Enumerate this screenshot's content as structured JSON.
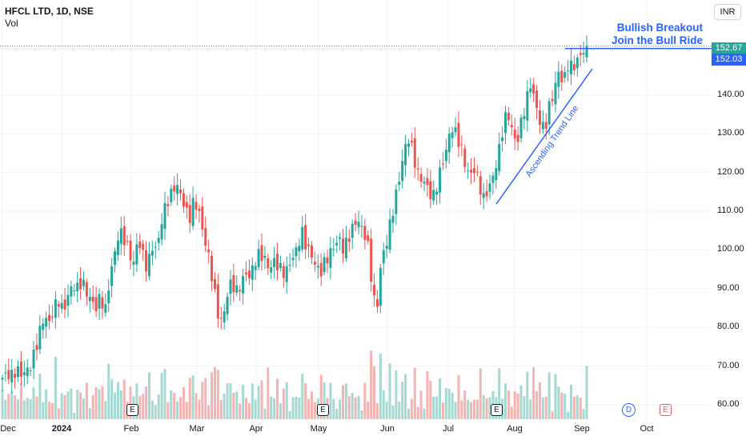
{
  "header": {
    "symbol": "HFCL LTD, 1D, NSE",
    "volume_label": "Vol"
  },
  "currency_button": "INR",
  "annotation": {
    "line1": "Bullish Breakout",
    "line2": "Join the Bull Ride",
    "trendline_label": "Ascending Trend Line"
  },
  "price_badges": {
    "last": "152.67",
    "level": "152.03"
  },
  "events": {
    "earnings": "E",
    "dividend": "D",
    "earnings_upcoming": "E"
  },
  "colors": {
    "up": "#26a69a",
    "down": "#ef5350",
    "vol_up": "#a7d8d2",
    "vol_down": "#f5b3b1",
    "accent": "#2962ff",
    "grid": "#f0f3fa"
  },
  "chart_data": {
    "type": "candlestick",
    "title": "HFCL LTD, 1D, NSE",
    "y_axis_ticks": [
      60,
      70,
      80,
      90,
      100,
      110,
      120,
      130,
      140
    ],
    "y_tick_labels": [
      "60.00",
      "70.00",
      "80.00",
      "90.00",
      "100.00",
      "110.00",
      "120.00",
      "130.00",
      "140.00"
    ],
    "x_tick_labels": [
      "Dec",
      "2024",
      "Feb",
      "Mar",
      "Apr",
      "May",
      "Jun",
      "Jul",
      "Aug",
      "Sep",
      "Oct"
    ],
    "last_price": 152.67,
    "breakout_level": 152.03,
    "close_path": [
      67,
      68,
      67.5,
      69,
      68,
      68.5,
      70,
      74,
      79,
      83,
      81,
      85,
      87,
      84,
      88,
      91,
      90,
      92,
      89,
      87,
      85,
      88,
      84,
      93,
      99,
      105,
      103,
      100,
      96,
      103,
      99,
      95,
      101,
      100,
      107,
      112,
      114,
      117,
      115,
      111,
      108,
      113,
      110,
      104,
      99,
      92,
      84,
      81,
      88,
      92,
      89,
      91,
      94,
      93,
      97,
      99,
      98,
      95,
      97,
      96,
      94,
      95,
      98,
      100,
      105,
      101,
      99,
      96,
      94,
      97,
      99,
      101,
      103,
      100,
      103,
      106,
      108,
      105,
      103,
      92,
      83,
      97,
      101,
      107,
      113,
      119,
      126,
      129,
      124,
      119,
      118,
      116,
      113,
      117,
      122,
      126,
      132,
      130,
      127,
      122,
      119,
      121,
      117,
      113,
      116,
      119,
      124,
      131,
      136,
      131,
      127,
      133,
      138,
      143,
      138,
      133,
      131,
      137,
      141,
      146,
      143,
      148,
      147,
      149,
      151,
      152.67
    ]
  }
}
